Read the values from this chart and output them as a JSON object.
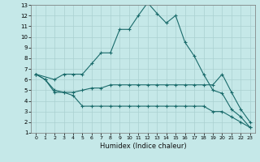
{
  "xlabel": "Humidex (Indice chaleur)",
  "background_color": "#c5e8e8",
  "grid_color": "#aad0d0",
  "line_color": "#1a6b6b",
  "xlim": [
    -0.5,
    23.5
  ],
  "ylim": [
    1,
    13
  ],
  "xticks": [
    0,
    1,
    2,
    3,
    4,
    5,
    6,
    7,
    8,
    9,
    10,
    11,
    12,
    13,
    14,
    15,
    16,
    17,
    18,
    19,
    20,
    21,
    22,
    23
  ],
  "yticks": [
    1,
    2,
    3,
    4,
    5,
    6,
    7,
    8,
    9,
    10,
    11,
    12,
    13
  ],
  "line1_x": [
    0,
    1,
    2,
    3,
    4,
    5,
    6,
    7,
    8,
    9,
    10,
    11,
    12,
    13,
    14,
    15,
    16,
    17,
    18,
    19,
    20,
    21,
    22,
    23
  ],
  "line1_y": [
    6.5,
    6.0,
    4.8,
    4.8,
    4.5,
    3.5,
    3.5,
    3.5,
    3.5,
    3.5,
    3.5,
    3.5,
    3.5,
    3.5,
    3.5,
    3.5,
    3.5,
    3.5,
    3.5,
    3.0,
    3.0,
    2.5,
    2.0,
    1.5
  ],
  "line2_x": [
    0,
    1,
    2,
    3,
    4,
    5,
    6,
    7,
    8,
    9,
    10,
    11,
    12,
    13,
    14,
    15,
    16,
    17,
    18,
    19,
    20,
    21,
    22,
    23
  ],
  "line2_y": [
    6.5,
    6.0,
    5.0,
    4.8,
    4.8,
    5.0,
    5.2,
    5.2,
    5.5,
    5.5,
    5.5,
    5.5,
    5.5,
    5.5,
    5.5,
    5.5,
    5.5,
    5.5,
    5.5,
    5.5,
    6.5,
    4.8,
    3.2,
    2.0
  ],
  "line3_x": [
    0,
    2,
    3,
    4,
    5,
    6,
    7,
    8,
    9,
    10,
    11,
    12,
    13,
    14,
    15,
    16,
    17,
    18,
    19,
    20,
    21,
    22,
    23
  ],
  "line3_y": [
    6.5,
    6.0,
    6.5,
    6.5,
    6.5,
    7.5,
    8.5,
    8.5,
    10.7,
    10.7,
    12.0,
    13.2,
    12.2,
    11.3,
    12.0,
    9.5,
    8.2,
    6.5,
    5.0,
    4.7,
    3.2,
    2.5,
    1.5
  ]
}
